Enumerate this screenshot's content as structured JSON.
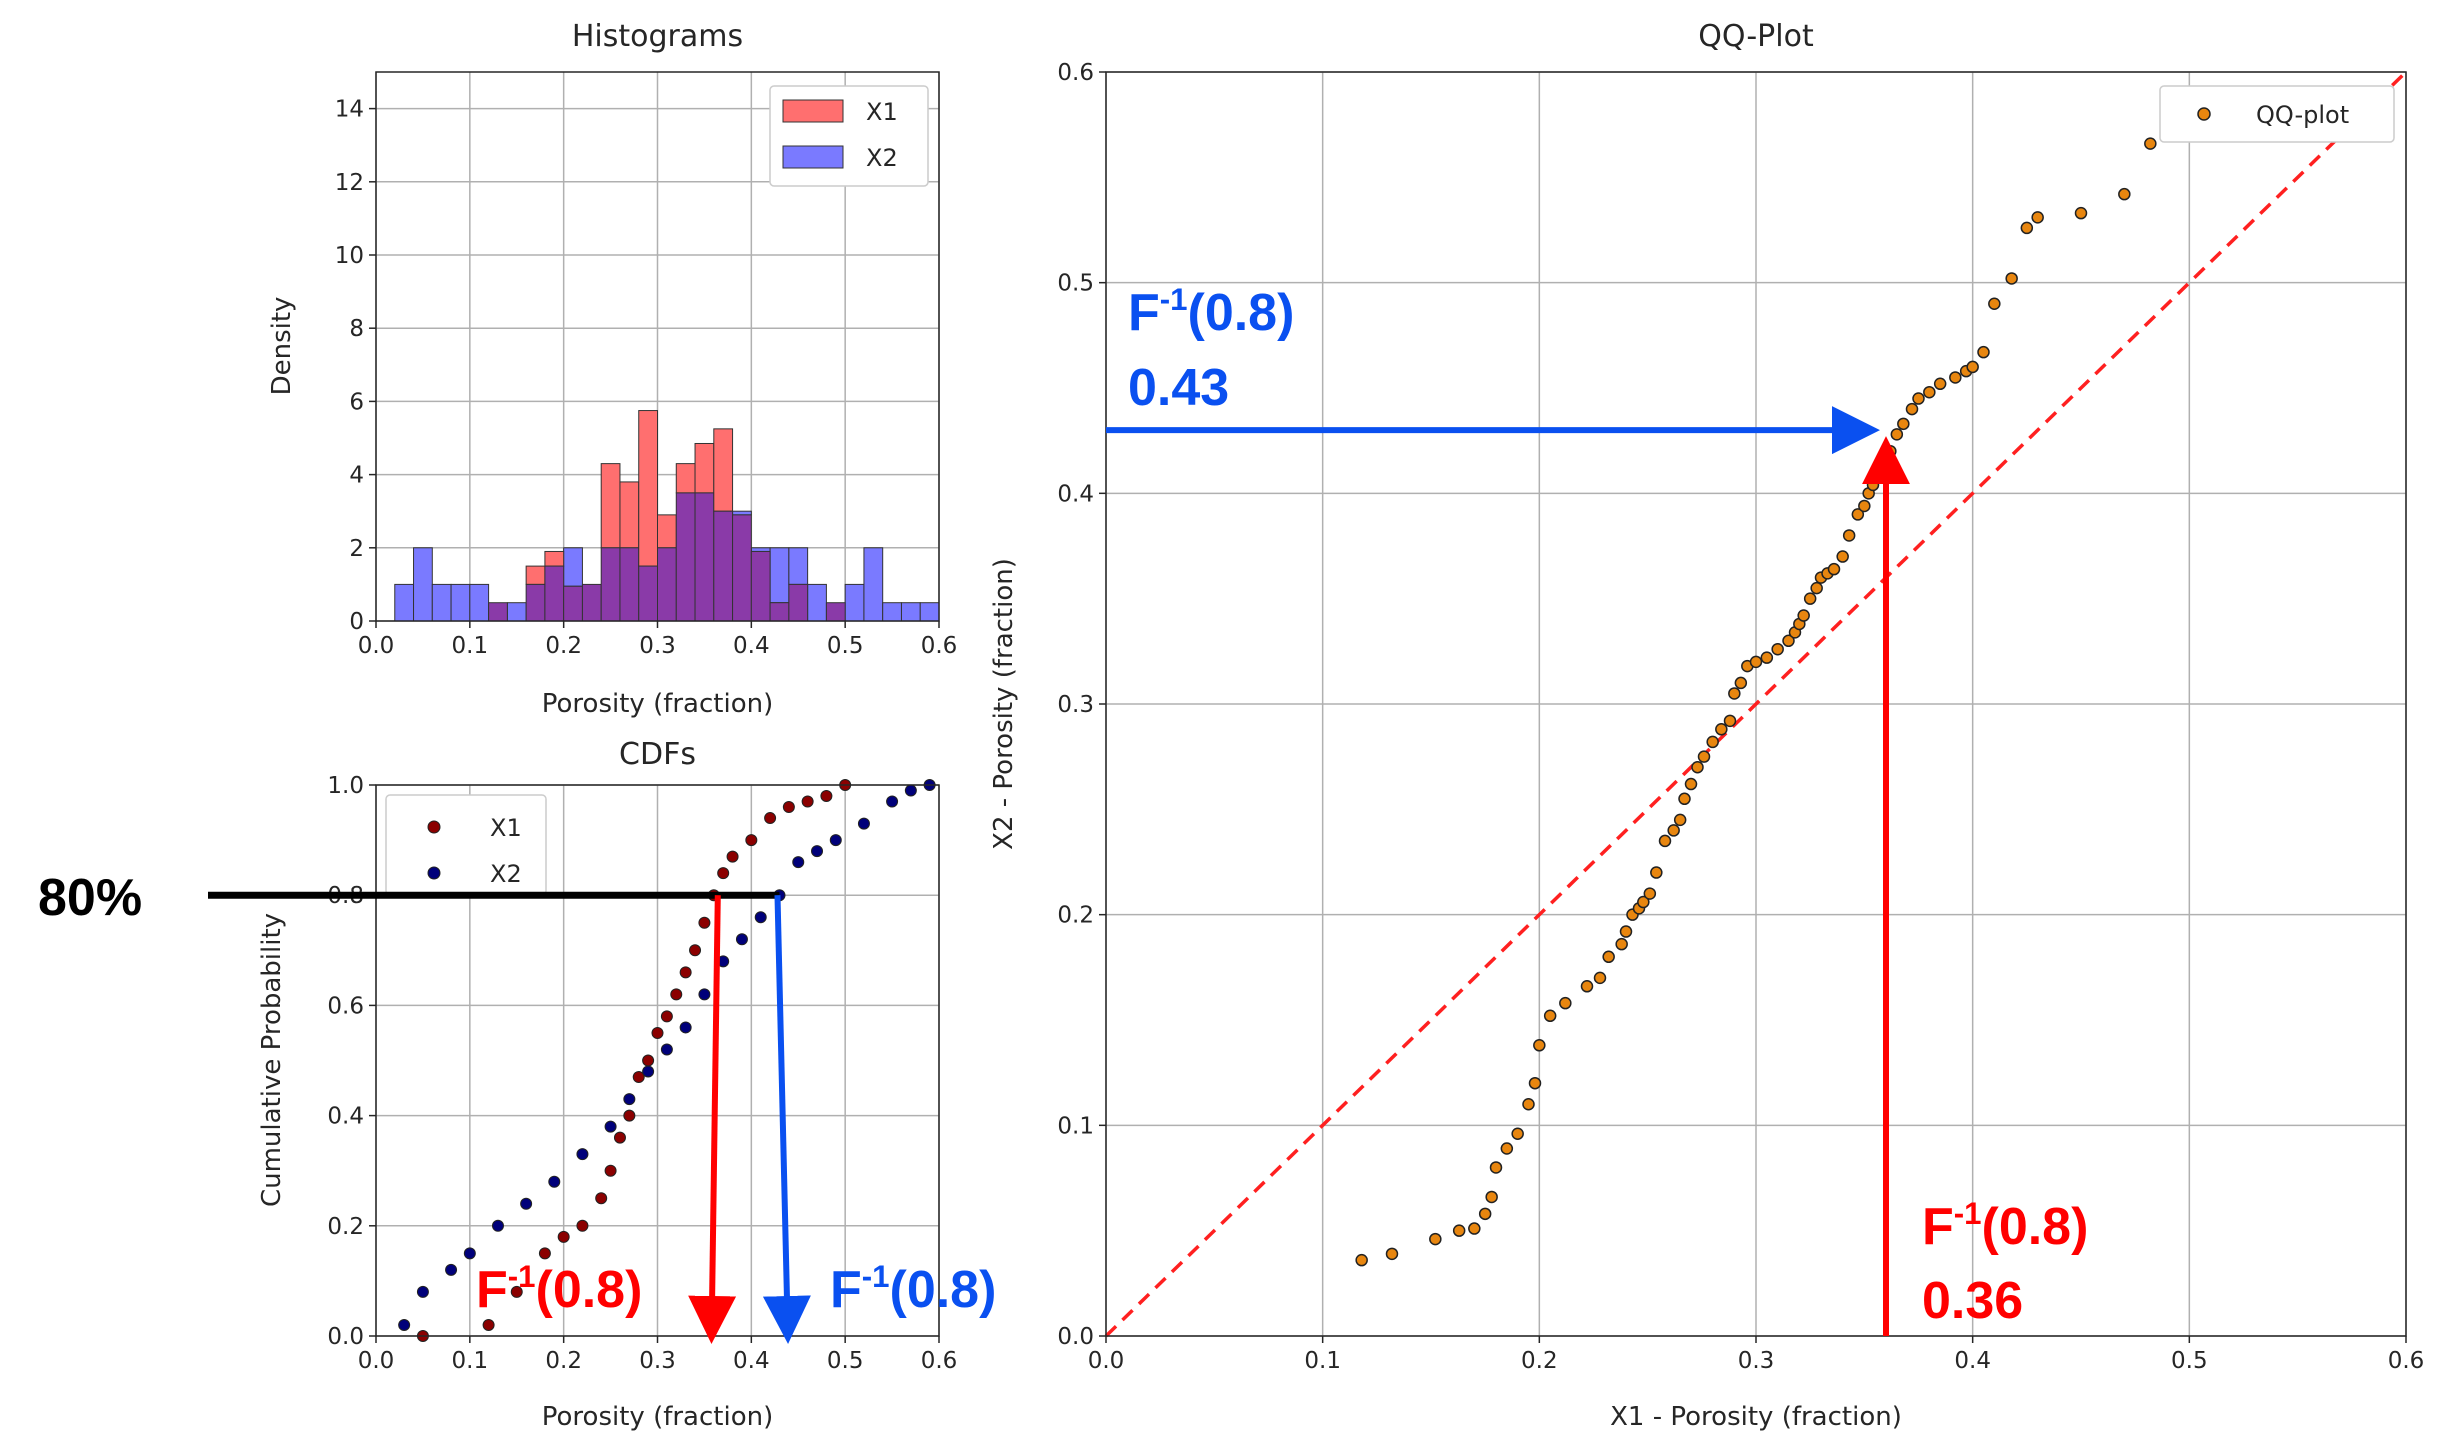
{
  "colors": {
    "x1_hist": "#ff6f6f",
    "x2_hist": "#7a7aff",
    "overlap": "#8a3aa8",
    "x1_cdf": "#8b0000",
    "x2_cdf": "#00007a",
    "qq_point": "#e8860f",
    "diag_line": "#ff2020",
    "annot_red": "#ff0000",
    "annot_blue": "#0a50f0",
    "annot_black": "#000000",
    "grid": "#b0b0b0"
  },
  "chart_data": [
    {
      "type": "bar",
      "title": "Histograms",
      "xlabel": "Porosity (fraction)",
      "ylabel": "Density",
      "xlim": [
        0.0,
        0.6
      ],
      "ylim": [
        0,
        15
      ],
      "xticks": [
        "0.0",
        "0.1",
        "0.2",
        "0.3",
        "0.4",
        "0.5",
        "0.6"
      ],
      "yticks": [
        "0",
        "2",
        "4",
        "6",
        "8",
        "10",
        "12",
        "14"
      ],
      "legend": [
        "X1",
        "X2"
      ],
      "legend_position": "top-right",
      "grid": true,
      "bin_width": 0.02,
      "bin_starts": [
        0.02,
        0.04,
        0.06,
        0.08,
        0.1,
        0.12,
        0.14,
        0.16,
        0.18,
        0.2,
        0.22,
        0.24,
        0.26,
        0.28,
        0.3,
        0.32,
        0.34,
        0.36,
        0.38,
        0.4,
        0.42,
        0.44,
        0.46,
        0.48,
        0.5,
        0.52,
        0.54,
        0.56,
        0.58
      ],
      "series": [
        {
          "name": "X1",
          "values": [
            0,
            0,
            0,
            0,
            0,
            0.5,
            0,
            1.5,
            1.9,
            0.95,
            1.0,
            4.3,
            3.8,
            5.75,
            2.9,
            4.3,
            4.85,
            5.25,
            2.9,
            1.9,
            0.5,
            1.0,
            0,
            0.5,
            0,
            0,
            0,
            0,
            0
          ]
        },
        {
          "name": "X2",
          "values": [
            1.0,
            2.0,
            1.0,
            1.0,
            1.0,
            0.5,
            0.5,
            1.0,
            1.5,
            2.0,
            1.0,
            2.0,
            2.0,
            1.5,
            2.0,
            3.5,
            3.5,
            3.0,
            3.0,
            2.0,
            2.0,
            2.0,
            1.0,
            0.5,
            1.0,
            2.0,
            0.5,
            0.5,
            0.5
          ]
        }
      ]
    },
    {
      "type": "scatter",
      "title": "CDFs",
      "xlabel": "Porosity (fraction)",
      "ylabel": "Cumulative Probability",
      "xlim": [
        0.0,
        0.6
      ],
      "ylim": [
        0.0,
        1.0
      ],
      "xticks": [
        "0.0",
        "0.1",
        "0.2",
        "0.3",
        "0.4",
        "0.5",
        "0.6"
      ],
      "yticks": [
        "0.0",
        "0.2",
        "0.4",
        "0.6",
        "0.8",
        "1.0"
      ],
      "legend": [
        "X1",
        "X2"
      ],
      "legend_position": "top-left",
      "grid": true,
      "series": [
        {
          "name": "X1",
          "x": [
            0.05,
            0.12,
            0.15,
            0.18,
            0.2,
            0.22,
            0.24,
            0.25,
            0.26,
            0.27,
            0.28,
            0.29,
            0.3,
            0.31,
            0.32,
            0.33,
            0.34,
            0.35,
            0.36,
            0.37,
            0.38,
            0.4,
            0.42,
            0.44,
            0.46,
            0.48,
            0.5
          ],
          "y": [
            0.0,
            0.02,
            0.08,
            0.15,
            0.18,
            0.2,
            0.25,
            0.3,
            0.36,
            0.4,
            0.47,
            0.5,
            0.55,
            0.58,
            0.62,
            0.66,
            0.7,
            0.75,
            0.8,
            0.84,
            0.87,
            0.9,
            0.94,
            0.96,
            0.97,
            0.98,
            1.0
          ]
        },
        {
          "name": "X2",
          "x": [
            0.03,
            0.05,
            0.08,
            0.1,
            0.13,
            0.16,
            0.19,
            0.22,
            0.25,
            0.27,
            0.29,
            0.31,
            0.33,
            0.35,
            0.37,
            0.39,
            0.41,
            0.43,
            0.45,
            0.47,
            0.49,
            0.52,
            0.55,
            0.57,
            0.59
          ],
          "y": [
            0.02,
            0.08,
            0.12,
            0.15,
            0.2,
            0.24,
            0.28,
            0.33,
            0.38,
            0.43,
            0.48,
            0.52,
            0.56,
            0.62,
            0.68,
            0.72,
            0.76,
            0.8,
            0.86,
            0.88,
            0.9,
            0.93,
            0.97,
            0.99,
            1.0
          ]
        }
      ],
      "annotations": {
        "probability_label": "80%",
        "probability": 0.8,
        "x1_quantile_label": "F-1(0.8)",
        "x1_quantile": 0.36,
        "x2_quantile_label": "F-1(0.8)",
        "x2_quantile": 0.43
      }
    },
    {
      "type": "scatter",
      "title": "QQ-Plot",
      "xlabel": "X1 - Porosity (fraction)",
      "ylabel": "X2 - Porosity (fraction)",
      "xlim": [
        0.0,
        0.6
      ],
      "ylim": [
        0.0,
        0.6
      ],
      "xticks": [
        "0.0",
        "0.1",
        "0.2",
        "0.3",
        "0.4",
        "0.5",
        "0.6"
      ],
      "yticks": [
        "0.0",
        "0.1",
        "0.2",
        "0.3",
        "0.4",
        "0.5",
        "0.6"
      ],
      "legend": [
        "QQ-plot"
      ],
      "legend_position": "top-right",
      "grid": true,
      "reference_line": "y = x",
      "series": [
        {
          "name": "QQ-plot",
          "x": [
            0.118,
            0.132,
            0.152,
            0.163,
            0.17,
            0.175,
            0.178,
            0.18,
            0.185,
            0.19,
            0.195,
            0.198,
            0.2,
            0.205,
            0.212,
            0.222,
            0.228,
            0.232,
            0.238,
            0.24,
            0.243,
            0.246,
            0.248,
            0.251,
            0.254,
            0.258,
            0.262,
            0.265,
            0.267,
            0.27,
            0.273,
            0.276,
            0.28,
            0.284,
            0.288,
            0.29,
            0.293,
            0.296,
            0.3,
            0.305,
            0.31,
            0.315,
            0.318,
            0.32,
            0.322,
            0.325,
            0.328,
            0.33,
            0.333,
            0.336,
            0.34,
            0.343,
            0.347,
            0.35,
            0.352,
            0.354,
            0.358,
            0.362,
            0.365,
            0.368,
            0.372,
            0.375,
            0.38,
            0.385,
            0.392,
            0.397,
            0.4,
            0.405,
            0.41,
            0.418,
            0.425,
            0.43,
            0.45,
            0.47,
            0.482
          ],
          "y": [
            0.036,
            0.039,
            0.046,
            0.05,
            0.051,
            0.058,
            0.066,
            0.08,
            0.089,
            0.096,
            0.11,
            0.12,
            0.138,
            0.152,
            0.158,
            0.166,
            0.17,
            0.18,
            0.186,
            0.192,
            0.2,
            0.203,
            0.206,
            0.21,
            0.22,
            0.235,
            0.24,
            0.245,
            0.255,
            0.262,
            0.27,
            0.275,
            0.282,
            0.288,
            0.292,
            0.305,
            0.31,
            0.318,
            0.32,
            0.322,
            0.326,
            0.33,
            0.334,
            0.338,
            0.342,
            0.35,
            0.355,
            0.36,
            0.362,
            0.364,
            0.37,
            0.38,
            0.39,
            0.394,
            0.4,
            0.404,
            0.41,
            0.42,
            0.428,
            0.433,
            0.44,
            0.445,
            0.448,
            0.452,
            0.455,
            0.458,
            0.46,
            0.467,
            0.49,
            0.502,
            0.526,
            0.531,
            0.533,
            0.542,
            0.566
          ]
        }
      ],
      "annotations": {
        "x2_label": "F-1(0.8)",
        "x2_value_label": "0.43",
        "x2_value": 0.43,
        "x1_label": "F-1(0.8)",
        "x1_value_label": "0.36",
        "x1_value": 0.36
      }
    }
  ]
}
